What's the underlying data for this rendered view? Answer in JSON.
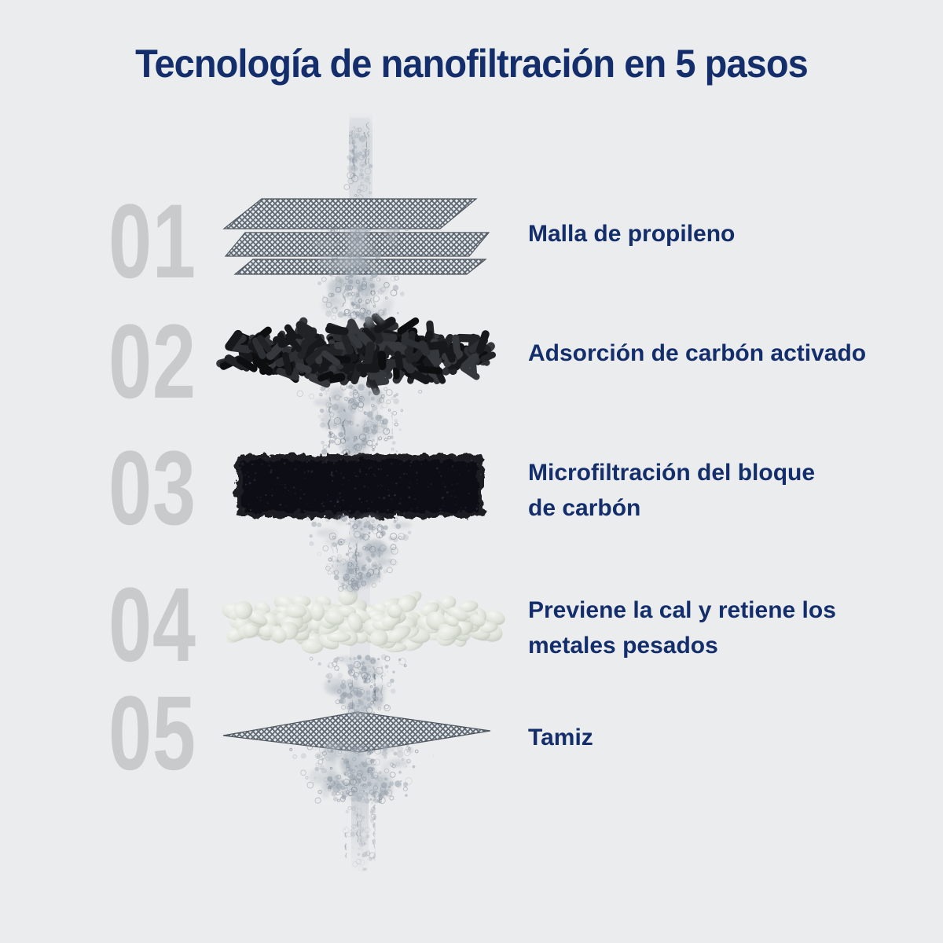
{
  "page": {
    "title": "Tecnología de nanofiltración en 5 pasos"
  },
  "colors": {
    "background": "#ebeced",
    "heading_navy": "#132e6b",
    "step_number_gray": "#c9cacc",
    "water_gray_blue": "#97a1ac",
    "carbon_black": "#17181b",
    "mesh_thread_gray": "#5f6973",
    "pebble_light": "#dde2d9"
  },
  "steps": [
    {
      "number": "01",
      "label": "Malla de propileno",
      "visual": "propylene-mesh-layers"
    },
    {
      "number": "02",
      "label": "Adsorción de carbón activado",
      "visual": "activated-carbon-pellets"
    },
    {
      "number": "03",
      "label": "Microfiltración del bloque\nde carbón",
      "visual": "carbon-block"
    },
    {
      "number": "04",
      "label": "Previene la cal y retiene los\nmetales pesados",
      "visual": "mineral-pebbles"
    },
    {
      "number": "05",
      "label": "Tamiz",
      "visual": "sieve-mesh"
    }
  ]
}
